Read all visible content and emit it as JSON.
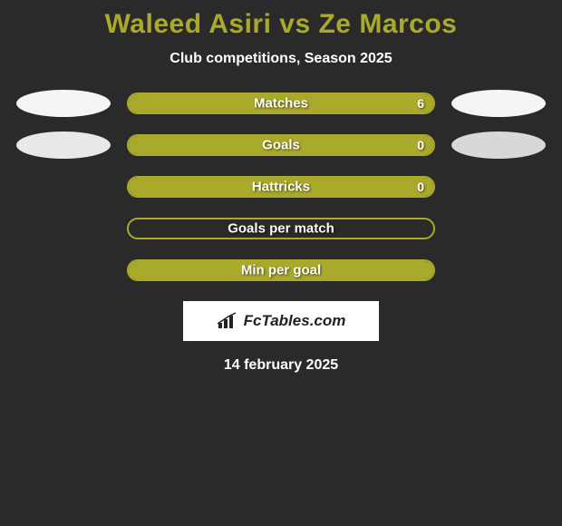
{
  "title": "Waleed Asiri vs Ze Marcos",
  "subtitle": "Club competitions, Season 2025",
  "date": "14 february 2025",
  "logo_text": "FcTables.com",
  "colors": {
    "accent": "#a9a92b",
    "background": "#2a2a2a",
    "ellipse_left_1": "#f5f5f5",
    "ellipse_left_2": "#e8e8e8",
    "ellipse_right_1": "#f5f5f5",
    "ellipse_right_2": "#d8d8d8",
    "bar_border": "#a9a92b",
    "bar_fill": "#a9a92b",
    "text": "#ffffff",
    "logo_bg": "#ffffff",
    "logo_text": "#222222"
  },
  "stats": [
    {
      "label": "Matches",
      "left_value": "",
      "right_value": "6",
      "left_fill_pct": 50,
      "right_fill_pct": 50,
      "show_left_ellipse": true,
      "show_right_ellipse": true,
      "left_ellipse_color": "#f5f5f5",
      "right_ellipse_color": "#f5f5f5"
    },
    {
      "label": "Goals",
      "left_value": "",
      "right_value": "0",
      "left_fill_pct": 50,
      "right_fill_pct": 50,
      "show_left_ellipse": true,
      "show_right_ellipse": true,
      "left_ellipse_color": "#e8e8e8",
      "right_ellipse_color": "#d8d8d8"
    },
    {
      "label": "Hattricks",
      "left_value": "",
      "right_value": "0",
      "left_fill_pct": 50,
      "right_fill_pct": 50,
      "show_left_ellipse": false,
      "show_right_ellipse": false
    },
    {
      "label": "Goals per match",
      "left_value": "",
      "right_value": "",
      "left_fill_pct": 0,
      "right_fill_pct": 0,
      "show_left_ellipse": false,
      "show_right_ellipse": false
    },
    {
      "label": "Min per goal",
      "left_value": "",
      "right_value": "",
      "left_fill_pct": 50,
      "right_fill_pct": 50,
      "show_left_ellipse": false,
      "show_right_ellipse": false
    }
  ]
}
